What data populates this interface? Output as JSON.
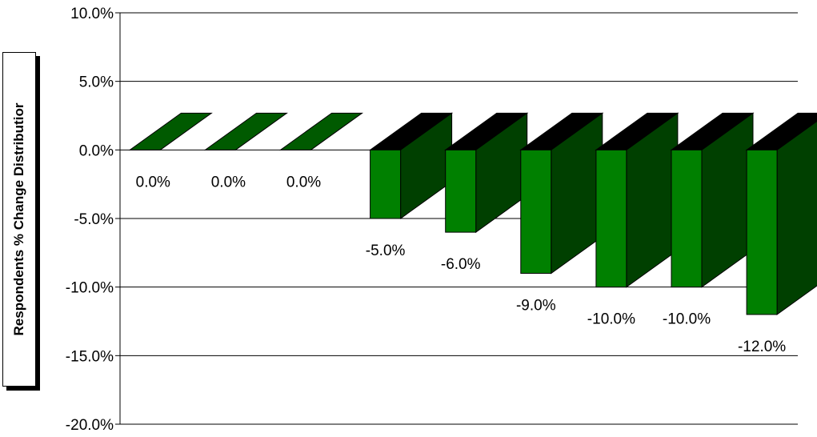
{
  "chart_data": {
    "type": "bar",
    "ylabel": "Respondents % Change Distributior",
    "xlabel": "",
    "ylim": [
      -20,
      10
    ],
    "yticks": [
      10,
      5,
      0,
      -5,
      -10,
      -15,
      -20
    ],
    "ytick_labels": [
      "10.0%",
      "5.0%",
      "0.0%",
      "-5.0%",
      "-10.0%",
      "-15.0%",
      "-20.0%"
    ],
    "values": [
      0,
      0,
      0,
      -5,
      -6,
      -9,
      -10,
      -10,
      -12
    ],
    "data_labels": [
      "0.0%",
      "0.0%",
      "0.0%",
      "-5.0%",
      "-6.0%",
      "-9.0%",
      "-10.0%",
      "-10.0%",
      "-12.0%"
    ],
    "grid": true,
    "colors": {
      "front": "#008000",
      "side": "#004000",
      "top": "#000000",
      "flat_top": "#005a00"
    }
  }
}
